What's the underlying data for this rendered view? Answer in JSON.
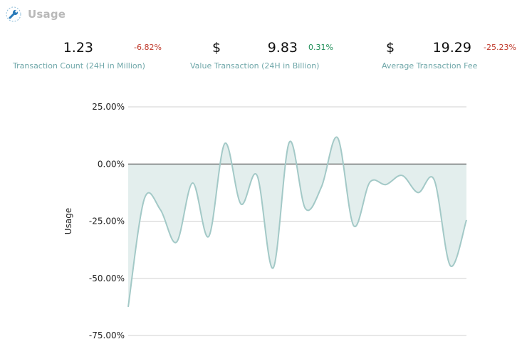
{
  "header": {
    "title": "Usage",
    "icon": "wrench-icon"
  },
  "stats": [
    {
      "currency": "",
      "value": "1.23",
      "change": "-6.82%",
      "direction": "negative",
      "label": "Transaction Count (24H in Million)"
    },
    {
      "currency": "$",
      "value": "9.83",
      "change": "0.31%",
      "direction": "positive",
      "label": "Value Transaction (24H in Billion)"
    },
    {
      "currency": "$",
      "value": "19.29",
      "change": "-25.23%",
      "direction": "negative",
      "label": "Average Transaction Fee"
    }
  ],
  "colors": {
    "line": "#a3c9c7",
    "fill": "#e3eeed",
    "grid": "#d0d0d0",
    "zero_line": "#444444",
    "negative": "#c0392b",
    "positive": "#1f8e58",
    "label": "#6fa7a9"
  },
  "chart_data": {
    "type": "area",
    "ylabel": "Usage",
    "xlabel": "",
    "ylim": [
      -75,
      25
    ],
    "yticks": [
      25,
      0,
      -25,
      -50,
      -75
    ],
    "ytick_labels": [
      "25.00%",
      "0.00%",
      "-25.00%",
      "-50.00%",
      "-75.00%"
    ],
    "grid": true,
    "x": [
      0,
      1,
      2,
      3,
      4,
      5,
      6,
      7,
      8,
      9,
      10,
      11,
      12,
      13,
      14,
      15,
      16,
      17,
      18,
      19,
      20,
      21,
      22,
      23,
      24,
      25,
      26,
      27,
      28
    ],
    "values": [
      -62.5,
      -15.3,
      -20,
      -34.2,
      -8.3,
      -31.7,
      9,
      -17.5,
      -5,
      -45.5,
      9.5,
      -19.5,
      -10,
      11.5,
      -27,
      -8,
      -9,
      -5,
      -12.5,
      -7,
      -44.5,
      -24.5,
      null,
      null,
      null,
      null,
      null,
      null,
      null
    ]
  }
}
